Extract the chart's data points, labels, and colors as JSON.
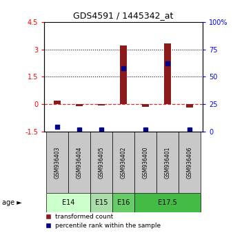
{
  "title": "GDS4591 / 1445342_at",
  "samples": [
    "GSM936403",
    "GSM936404",
    "GSM936405",
    "GSM936402",
    "GSM936400",
    "GSM936401",
    "GSM936406"
  ],
  "transformed_counts": [
    0.2,
    -0.12,
    -0.07,
    3.22,
    -0.13,
    3.32,
    -0.2
  ],
  "percentile_ranks": [
    4,
    2,
    2,
    58,
    2,
    62,
    2
  ],
  "age_groups": [
    {
      "label": "E14",
      "samples": [
        0,
        1
      ],
      "color": "#ccffcc"
    },
    {
      "label": "E15",
      "samples": [
        2
      ],
      "color": "#aaddaa"
    },
    {
      "label": "E16",
      "samples": [
        3
      ],
      "color": "#66cc66"
    },
    {
      "label": "E17.5",
      "samples": [
        4,
        5,
        6
      ],
      "color": "#44bb44"
    }
  ],
  "ylim_left": [
    -1.5,
    4.5
  ],
  "ylim_right": [
    0,
    100
  ],
  "yticks_left": [
    -1.5,
    0,
    1.5,
    3,
    4.5
  ],
  "yticks_left_labels": [
    "-1.5",
    "0",
    "1.5",
    "3",
    "4.5"
  ],
  "yticks_right": [
    0,
    25,
    50,
    75,
    100
  ],
  "yticks_right_labels": [
    "0",
    "25",
    "50",
    "75",
    "100%"
  ],
  "bar_color": "#8B1A1A",
  "dot_color": "#00008B",
  "zero_line_color": "#cc3333",
  "grid_line_color": "#000000",
  "sample_box_color": "#c8c8c8",
  "legend_red_label": "transformed count",
  "legend_blue_label": "percentile rank within the sample",
  "bar_width": 0.32
}
